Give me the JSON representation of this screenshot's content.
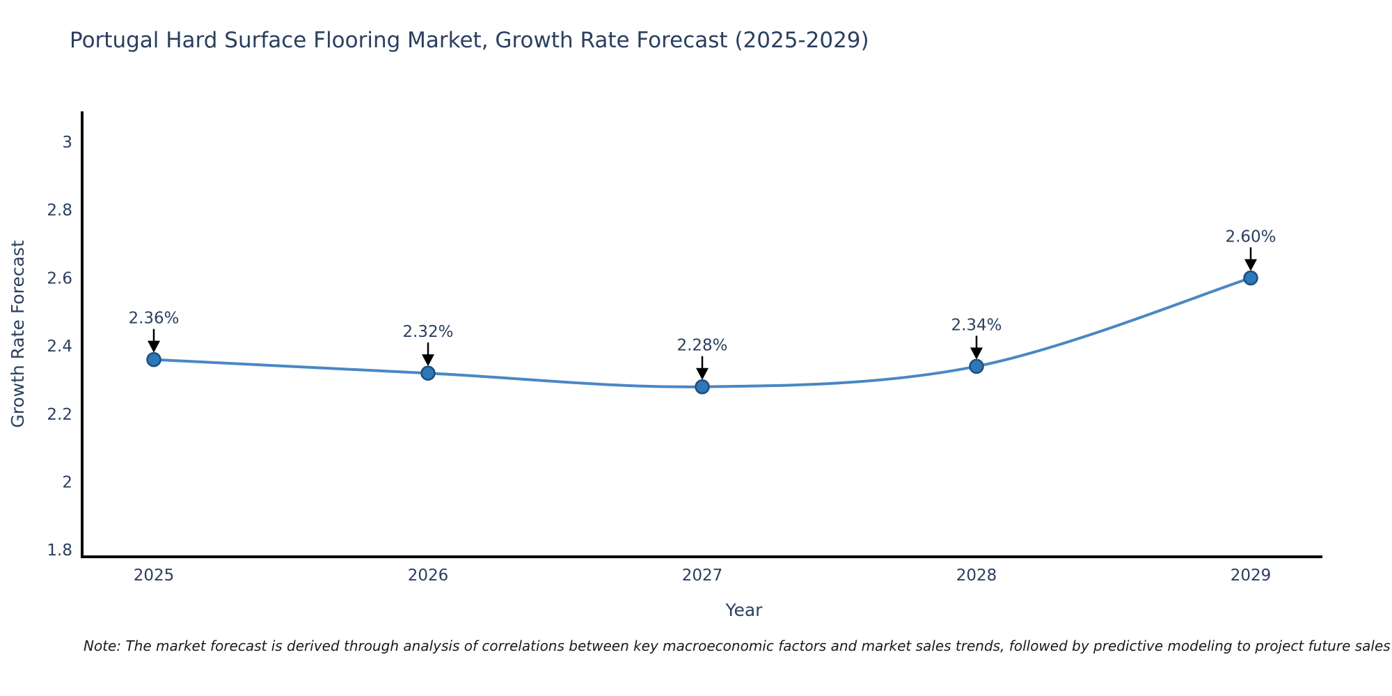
{
  "note": {
    "text": "Note: The market forecast is derived through analysis of correlations between key macroeconomic factors and market sales trends, followed by predictive modeling to project future sales"
  },
  "chart_data": {
    "type": "line",
    "title": "Portugal Hard Surface Flooring Market, Growth Rate Forecast (2025-2029)",
    "xlabel": "Year",
    "ylabel": "Growth Rate Forecast",
    "categories": [
      "2025",
      "2026",
      "2027",
      "2028",
      "2029"
    ],
    "values": [
      2.36,
      2.32,
      2.28,
      2.34,
      2.6
    ],
    "annotations": [
      "2.36%",
      "2.32%",
      "2.28%",
      "2.34%",
      "2.60%"
    ],
    "ytick_labels": [
      "1.8",
      "2",
      "2.2",
      "2.4",
      "2.6",
      "2.8",
      "3"
    ],
    "yticks": [
      1.8,
      2.0,
      2.2,
      2.4,
      2.6,
      2.8,
      3.0
    ],
    "ylim": [
      1.78,
      3.09
    ],
    "grid": false,
    "legend": false,
    "line_shape": "spline",
    "colors": {
      "line": "#4a87c4",
      "marker_fill": "#2e77b8",
      "marker_edge": "#1f4e79",
      "axis_line": "#000000",
      "text": "#2a3f5f",
      "annotation_arrow": "#000000",
      "background": "#ffffff"
    }
  }
}
